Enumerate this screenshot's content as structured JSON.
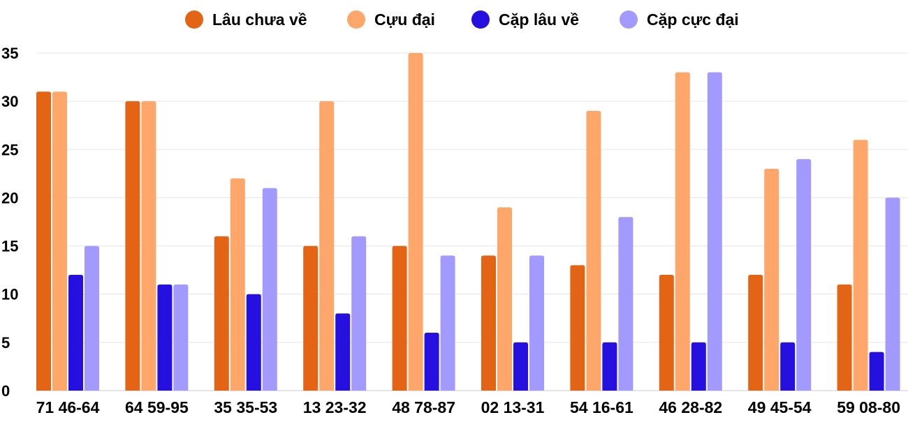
{
  "chart_data": {
    "type": "bar",
    "title": "",
    "xlabel": "",
    "ylabel": "",
    "ylim": [
      0,
      35
    ],
    "yticks": [
      0,
      5,
      10,
      15,
      20,
      25,
      30,
      35
    ],
    "grid": true,
    "legend_position": "top",
    "categories": [
      "71 46-64",
      "64 59-95",
      "35 35-53",
      "13 23-32",
      "48 78-87",
      "02 13-31",
      "54 16-61",
      "46 28-82",
      "49 45-54",
      "59 08-80"
    ],
    "series": [
      {
        "name": "Lâu chưa về",
        "color": "#e36414",
        "values": [
          31,
          30,
          16,
          15,
          15,
          14,
          13,
          12,
          12,
          11
        ]
      },
      {
        "name": "Cựu đại",
        "color": "#ffa66b",
        "values": [
          31,
          30,
          22,
          30,
          35,
          19,
          29,
          33,
          23,
          26
        ]
      },
      {
        "name": "Cặp lâu về",
        "color": "#2610e0",
        "values": [
          12,
          11,
          10,
          8,
          6,
          5,
          5,
          5,
          5,
          4
        ]
      },
      {
        "name": "Cặp cực đại",
        "color": "#a39aff",
        "values": [
          15,
          11,
          21,
          16,
          14,
          14,
          18,
          33,
          24,
          20
        ]
      }
    ]
  }
}
